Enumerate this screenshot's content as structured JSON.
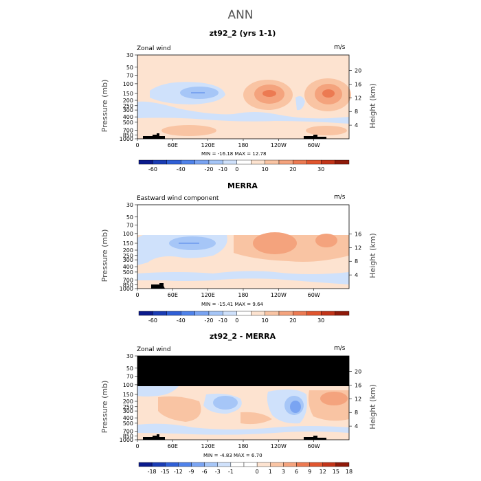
{
  "page_title": "ANN",
  "chart_data": [
    {
      "type": "heatmap",
      "title": "zt92_2 (yrs 1-1)",
      "subtitle_left": "Zonal wind",
      "units": "m/s",
      "ylabel": "Pressure (mb)",
      "ylabel_right": "Height (km)",
      "y_ticks": [
        "30",
        "50",
        "70",
        "100",
        "150",
        "200",
        "250",
        "300",
        "400",
        "500",
        "700",
        "850",
        "1000"
      ],
      "y_ticks_right": [
        "20",
        "16",
        "12",
        "8",
        "4"
      ],
      "x_ticks": [
        "0",
        "60E",
        "120E",
        "180",
        "120W",
        "60W"
      ],
      "min_max_text": "MIN = -16.18   MAX =  12.78",
      "colorbar": {
        "labels": [
          "-60",
          "-40",
          "-20",
          "-10",
          "0",
          "10",
          "20",
          "30"
        ],
        "colors": [
          "#0a1a8c",
          "#1a3cb4",
          "#2f5fd6",
          "#4f82ea",
          "#7aa4f2",
          "#a6c6f7",
          "#cfe1fb",
          "#ffffff",
          "#fde3d0",
          "#f9c4a3",
          "#f4a37d",
          "#ec7a52",
          "#e0552e",
          "#c23419",
          "#8f1a0a"
        ]
      }
    },
    {
      "type": "heatmap",
      "title": "MERRA",
      "subtitle_left": "Eastward wind component",
      "units": "m/s",
      "ylabel": "Pressure (mb)",
      "ylabel_right": "Height (km)",
      "y_ticks": [
        "30",
        "50",
        "70",
        "100",
        "150",
        "200",
        "250",
        "300",
        "400",
        "500",
        "700",
        "850",
        "1000"
      ],
      "y_ticks_right": [
        "16",
        "12",
        "8",
        "4"
      ],
      "x_ticks": [
        "0",
        "60E",
        "120E",
        "180",
        "120W",
        "60W"
      ],
      "min_max_text": "MIN = -15.41   MAX =   9.64",
      "colorbar": {
        "labels": [
          "-60",
          "-40",
          "-20",
          "-10",
          "0",
          "10",
          "20",
          "30"
        ],
        "colors": [
          "#0a1a8c",
          "#1a3cb4",
          "#2f5fd6",
          "#4f82ea",
          "#7aa4f2",
          "#a6c6f7",
          "#cfe1fb",
          "#ffffff",
          "#fde3d0",
          "#f9c4a3",
          "#f4a37d",
          "#ec7a52",
          "#e0552e",
          "#c23419",
          "#8f1a0a"
        ]
      }
    },
    {
      "type": "heatmap",
      "title": "zt92_2 - MERRA",
      "subtitle_left": "Zonal wind",
      "units": "m/s",
      "ylabel": "Pressure (mb)",
      "ylabel_right": "Height (km)",
      "y_ticks": [
        "30",
        "50",
        "70",
        "100",
        "150",
        "200",
        "250",
        "300",
        "400",
        "500",
        "700",
        "850",
        "1000"
      ],
      "y_ticks_right": [
        "20",
        "16",
        "12",
        "8",
        "4"
      ],
      "x_ticks": [
        "0",
        "60E",
        "120E",
        "180",
        "120W",
        "60W"
      ],
      "min_max_text": "MIN = -4.83   MAX =   6.70",
      "colorbar": {
        "labels": [
          "-18",
          "-15",
          "-12",
          "-9",
          "-6",
          "-3",
          "-1",
          "0",
          "1",
          "3",
          "6",
          "9",
          "12",
          "15",
          "18"
        ],
        "colors": [
          "#0a1a8c",
          "#1a3cb4",
          "#2f5fd6",
          "#4f82ea",
          "#7aa4f2",
          "#a6c6f7",
          "#cfe1fb",
          "#ffffff",
          "#ffffff",
          "#fde3d0",
          "#f9c4a3",
          "#f4a37d",
          "#ec7a52",
          "#e0552e",
          "#c23419",
          "#8f1a0a"
        ]
      }
    }
  ]
}
